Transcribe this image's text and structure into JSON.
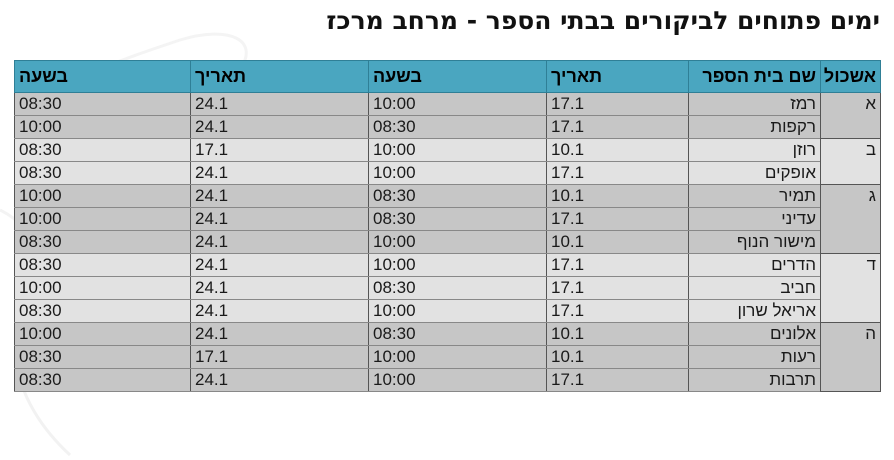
{
  "title": "ימים פתוחים לביקורים בבתי הספר - מרחב מרכז",
  "headers": {
    "cluster": "אשכול",
    "school": "שם בית הספר",
    "date1": "תאריך",
    "time1": "בשעה",
    "date2": "תאריך",
    "time2": "בשעה"
  },
  "groups": [
    {
      "cluster": "א",
      "shade": "dark",
      "rows": [
        {
          "school": "רמז",
          "date1": "17.1",
          "time1": "10:00",
          "date2": "24.1",
          "time2": "08:30"
        },
        {
          "school": "רקפות",
          "date1": "17.1",
          "time1": "08:30",
          "date2": "24.1",
          "time2": "10:00"
        }
      ]
    },
    {
      "cluster": "ב",
      "shade": "light",
      "rows": [
        {
          "school": "רוזן",
          "date1": "10.1",
          "time1": "10:00",
          "date2": "17.1",
          "time2": "08:30"
        },
        {
          "school": "אופקים",
          "date1": "17.1",
          "time1": "10:00",
          "date2": "24.1",
          "time2": "08:30"
        }
      ]
    },
    {
      "cluster": "ג",
      "shade": "dark",
      "rows": [
        {
          "school": "תמיר",
          "date1": "10.1",
          "time1": "08:30",
          "date2": "24.1",
          "time2": "10:00"
        },
        {
          "school": "עדיני",
          "date1": "17.1",
          "time1": "08:30",
          "date2": "24.1",
          "time2": "10:00"
        },
        {
          "school": "מישור הנוף",
          "date1": "10.1",
          "time1": "10:00",
          "date2": "24.1",
          "time2": "08:30"
        }
      ]
    },
    {
      "cluster": "ד",
      "shade": "light",
      "rows": [
        {
          "school": "הדרים",
          "date1": "17.1",
          "time1": "10:00",
          "date2": "24.1",
          "time2": "08:30"
        },
        {
          "school": "חביב",
          "date1": "17.1",
          "time1": "08:30",
          "date2": "24.1",
          "time2": "10:00"
        },
        {
          "school": "אריאל שרון",
          "date1": "17.1",
          "time1": "10:00",
          "date2": "24.1",
          "time2": "08:30"
        }
      ]
    },
    {
      "cluster": "ה",
      "shade": "dark",
      "rows": [
        {
          "school": "אלונים",
          "date1": "10.1",
          "time1": "08:30",
          "date2": "24.1",
          "time2": "10:00"
        },
        {
          "school": "רעות",
          "date1": "10.1",
          "time1": "10:00",
          "date2": "17.1",
          "time2": "08:30"
        },
        {
          "school": "תרבות",
          "date1": "17.1",
          "time1": "10:00",
          "date2": "24.1",
          "time2": "08:30"
        }
      ]
    }
  ],
  "colors": {
    "header_bg": "#4aa6c0",
    "row_dark": "#c6c6c6",
    "row_light": "#e2e2e2"
  }
}
